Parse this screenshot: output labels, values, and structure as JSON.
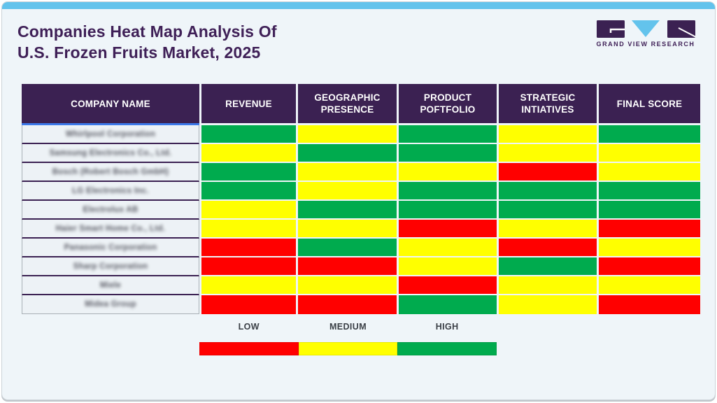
{
  "header": {
    "title_line1": "Companies Heat Map Analysis Of",
    "title_line2": "U.S. Frozen Fruits Market, 2025",
    "logo_text": "GRAND VIEW RESEARCH"
  },
  "table": {
    "columns": [
      {
        "key": "company-name",
        "label": "COMPANY NAME"
      },
      {
        "key": "revenue",
        "label": "REVENUE"
      },
      {
        "key": "geographic-presence",
        "label": "GEOGRAPHIC PRESENCE"
      },
      {
        "key": "product-poftfolio",
        "label": "PRODUCT POFTFOLIO"
      },
      {
        "key": "strategic-intiatives",
        "label": "STRATEGIC INTIATIVES"
      },
      {
        "key": "final-score",
        "label": "FINAL SCORE"
      }
    ],
    "rows": [
      {
        "company": "Whirlpool Corporation",
        "scores": [
          "high",
          "medium",
          "high",
          "medium",
          "high"
        ]
      },
      {
        "company": "Samsung Electronics Co., Ltd.",
        "scores": [
          "medium",
          "high",
          "high",
          "medium",
          "medium"
        ]
      },
      {
        "company": "Bosch (Robert Bosch GmbH)",
        "scores": [
          "high",
          "medium",
          "medium",
          "low",
          "medium"
        ]
      },
      {
        "company": "LG Electronics Inc.",
        "scores": [
          "high",
          "medium",
          "high",
          "high",
          "high"
        ]
      },
      {
        "company": "Electrolux AB",
        "scores": [
          "medium",
          "high",
          "high",
          "high",
          "high"
        ]
      },
      {
        "company": "Haier Smart Home Co., Ltd.",
        "scores": [
          "medium",
          "medium",
          "low",
          "medium",
          "low"
        ]
      },
      {
        "company": "Panasonic Corporation",
        "scores": [
          "low",
          "high",
          "medium",
          "low",
          "medium"
        ]
      },
      {
        "company": "Sharp Corporation",
        "scores": [
          "low",
          "low",
          "medium",
          "high",
          "low"
        ]
      },
      {
        "company": "Miele",
        "scores": [
          "medium",
          "medium",
          "low",
          "medium",
          "medium"
        ]
      },
      {
        "company": "Midea Group",
        "scores": [
          "low",
          "low",
          "high",
          "medium",
          "low"
        ]
      }
    ]
  },
  "legend": {
    "items": [
      {
        "label": "LOW",
        "level": "low"
      },
      {
        "label": "MEDIUM",
        "level": "medium"
      },
      {
        "label": "HIGH",
        "level": "high"
      }
    ]
  },
  "colors": {
    "low": "#FF0000",
    "medium": "#FFFF00",
    "high": "#00AB4E",
    "header_bg": "#3B2152",
    "accent_blue": "#63C3EC",
    "title_purple": "#3F2057"
  },
  "chart_data": {
    "type": "heatmap",
    "title": "Companies Heat Map Analysis Of U.S. Frozen Fruits Market, 2025",
    "x_labels": [
      "REVENUE",
      "GEOGRAPHIC PRESENCE",
      "PRODUCT POFTFOLIO",
      "STRATEGIC INTIATIVES",
      "FINAL SCORE"
    ],
    "y_labels": [
      "Whirlpool Corporation",
      "Samsung Electronics Co., Ltd.",
      "Bosch (Robert Bosch GmbH)",
      "LG Electronics Inc.",
      "Electrolux AB",
      "Haier Smart Home Co., Ltd.",
      "Panasonic Corporation",
      "Sharp Corporation",
      "Miele",
      "Midea Group"
    ],
    "values": [
      [
        "high",
        "medium",
        "high",
        "medium",
        "high"
      ],
      [
        "medium",
        "high",
        "high",
        "medium",
        "medium"
      ],
      [
        "high",
        "medium",
        "medium",
        "low",
        "medium"
      ],
      [
        "high",
        "medium",
        "high",
        "high",
        "high"
      ],
      [
        "medium",
        "high",
        "high",
        "high",
        "high"
      ],
      [
        "medium",
        "medium",
        "low",
        "medium",
        "low"
      ],
      [
        "low",
        "high",
        "medium",
        "low",
        "medium"
      ],
      [
        "low",
        "low",
        "medium",
        "high",
        "low"
      ],
      [
        "medium",
        "medium",
        "low",
        "medium",
        "medium"
      ],
      [
        "low",
        "low",
        "high",
        "medium",
        "low"
      ]
    ],
    "scale": {
      "low": "#FF0000",
      "medium": "#FFFF00",
      "high": "#00AB4E"
    },
    "legend": [
      "LOW",
      "MEDIUM",
      "HIGH"
    ],
    "legend_position": "bottom"
  }
}
